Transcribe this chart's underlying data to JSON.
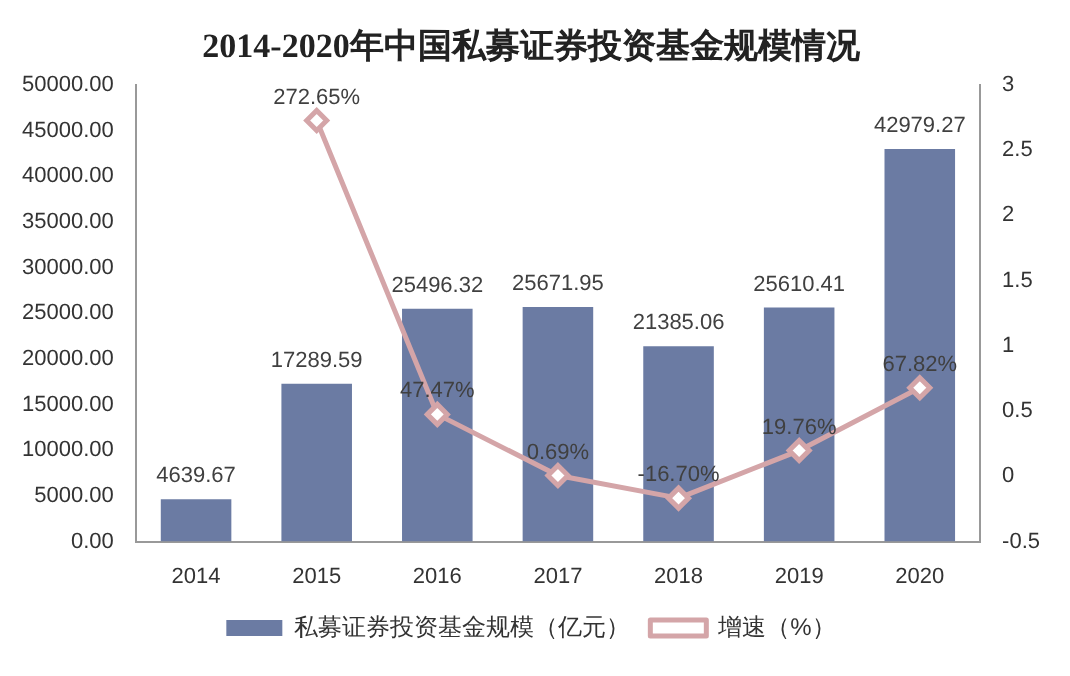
{
  "chart_data": {
    "type": "bar",
    "title": "2014-2020年中国私募证券投资基金规模情况",
    "categories": [
      "2014",
      "2015",
      "2016",
      "2017",
      "2018",
      "2019",
      "2020"
    ],
    "series": [
      {
        "name": "私募证券投资基金规模（亿元）",
        "color": "#6b7ba3",
        "values": [
          4639.67,
          17289.59,
          25496.32,
          25671.95,
          21385.06,
          25610.41,
          42979.27
        ],
        "value_labels": [
          "4639.67",
          "17289.59",
          "25496.32",
          "25671.95",
          "21385.06",
          "25610.41",
          "42979.27"
        ]
      },
      {
        "name": "增速（%）",
        "type": "line",
        "axis": "y2",
        "color": "#d4a5a8",
        "marker": "diamond",
        "values": [
          null,
          2.7265,
          0.4747,
          0.0069,
          -0.167,
          0.1976,
          0.6782
        ],
        "value_labels": [
          null,
          "272.65%",
          "47.47%",
          "0.69%",
          "-16.70%",
          "19.76%",
          "67.82%"
        ]
      }
    ],
    "ylim": [
      0,
      50000
    ],
    "yticks": [
      {
        "value": 0,
        "label": "0.00"
      },
      {
        "value": 5000,
        "label": "5000.00"
      },
      {
        "value": 10000,
        "label": "10000.00"
      },
      {
        "value": 15000,
        "label": "15000.00"
      },
      {
        "value": 20000,
        "label": "20000.00"
      },
      {
        "value": 25000,
        "label": "25000.00"
      },
      {
        "value": 30000,
        "label": "30000.00"
      },
      {
        "value": 35000,
        "label": "35000.00"
      },
      {
        "value": 40000,
        "label": "40000.00"
      },
      {
        "value": 45000,
        "label": "45000.00"
      },
      {
        "value": 50000,
        "label": "50000.00"
      }
    ],
    "y2lim": [
      -0.5,
      3
    ],
    "y2ticks": [
      -0.5,
      0,
      0.5,
      1,
      1.5,
      2,
      2.5,
      3
    ],
    "legend": "bottom"
  }
}
